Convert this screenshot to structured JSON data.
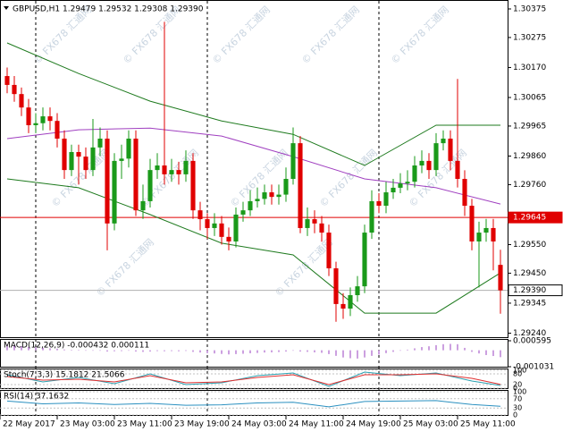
{
  "chart_data": {
    "type": "candlestick",
    "header": "GBPUSD,H1  1.29479 1.29532 1.29308 1.29390",
    "watermark": "© FX678 汇通网",
    "up_color": "#1a9a1a",
    "down_color": "#e00000",
    "xlim": [
      -1,
      70
    ],
    "ylim": [
      1.29229,
      1.304
    ],
    "yticks": [
      {
        "value": 1.30375,
        "label": "1.30375"
      },
      {
        "value": 1.30275,
        "label": "1.30275"
      },
      {
        "value": 1.3017,
        "label": "1.30170"
      },
      {
        "value": 1.30065,
        "label": "1.30065"
      },
      {
        "value": 1.29965,
        "label": "1.29965"
      },
      {
        "value": 1.2986,
        "label": "1.29860"
      },
      {
        "value": 1.2976,
        "label": "1.29760"
      },
      {
        "value": 1.2955,
        "label": "1.29550"
      },
      {
        "value": 1.2945,
        "label": "1.29450"
      },
      {
        "value": 1.29345,
        "label": "1.29345"
      },
      {
        "value": 1.2924,
        "label": "1.29240"
      }
    ],
    "xticks": [
      {
        "value": -1,
        "label": "22 May 2017"
      },
      {
        "value": 7,
        "label": "23 May 03:00"
      },
      {
        "value": 15,
        "label": "23 May 11:00"
      },
      {
        "value": 23,
        "label": "23 May 19:00"
      },
      {
        "value": 31,
        "label": "24 May 03:00"
      },
      {
        "value": 39,
        "label": "24 May 11:00"
      },
      {
        "value": 47,
        "label": "24 May 19:00"
      },
      {
        "value": 55,
        "label": "25 May 03:00"
      },
      {
        "value": 63,
        "label": "25 May 11:00"
      }
    ],
    "day_breaks": [
      4,
      28,
      52
    ],
    "markers": [
      {
        "value": 1.29645,
        "label": "1.29645",
        "color": "#e00000"
      },
      {
        "value": 1.2939,
        "label": "1.29390",
        "color": "#000000"
      }
    ],
    "open": [
      1.3014,
      1.30109,
      1.30077,
      1.3003,
      1.29968,
      1.29975,
      1.29999,
      1.29983,
      1.29921,
      1.29811,
      1.29874,
      1.29858,
      1.29811,
      1.2989,
      1.29921,
      1.29624,
      1.29843,
      1.29851,
      1.29921,
      1.2967,
      1.29702,
      1.29811,
      1.29827,
      1.29796,
      1.29811,
      1.29796,
      1.29843,
      1.2967,
      1.29639,
      1.29608,
      1.29624,
      1.29577,
      1.29561,
      1.29655,
      1.2967,
      1.29702,
      1.2971,
      1.29733,
      1.29717,
      1.29725,
      1.2978,
      1.29905,
      1.29608,
      1.29639,
      1.29624,
      1.29592,
      1.29467,
      1.29342,
      1.29326,
      1.29373,
      1.29404,
      1.29592,
      1.29702,
      1.29686,
      1.29733,
      1.29749,
      1.29764,
      1.2977,
      1.29827,
      1.29843,
      1.29811,
      1.29905,
      1.29921,
      1.29843,
      1.2978,
      1.29686,
      1.29561,
      1.29592,
      1.29608,
      1.29479
    ],
    "high": [
      1.3017,
      1.3014,
      1.301,
      1.3006,
      1.3001,
      1.3003,
      1.3003,
      1.3001,
      1.2995,
      1.299,
      1.299,
      1.2989,
      1.2999,
      1.2996,
      1.2995,
      1.2987,
      1.299,
      1.2995,
      1.2995,
      1.2976,
      1.2985,
      1.2987,
      1.3033,
      1.2985,
      1.2984,
      1.2988,
      1.2987,
      1.297,
      1.2966,
      1.2966,
      1.2965,
      1.2961,
      1.2968,
      1.297,
      1.2974,
      1.2975,
      1.2976,
      1.2976,
      1.2976,
      1.2982,
      1.2996,
      1.2993,
      1.2968,
      1.2967,
      1.2965,
      1.2962,
      1.2949,
      1.2938,
      1.294,
      1.2944,
      1.2962,
      1.2974,
      1.2973,
      1.2977,
      1.2978,
      1.298,
      1.2981,
      1.2986,
      1.2988,
      1.2987,
      1.2994,
      1.2995,
      1.2995,
      1.3013,
      1.2981,
      1.2971,
      1.2963,
      1.2964,
      1.2964,
      1.29532
    ],
    "low": [
      1.3008,
      1.3005,
      1.3,
      1.2994,
      1.2994,
      1.2995,
      1.2995,
      1.2989,
      1.2978,
      1.2979,
      1.2976,
      1.2978,
      1.2979,
      1.2986,
      1.2953,
      1.296,
      1.2978,
      1.2982,
      1.2965,
      1.2964,
      1.2968,
      1.2978,
      1.2976,
      1.2977,
      1.2976,
      1.2977,
      1.2964,
      1.296,
      1.2957,
      1.2958,
      1.2955,
      1.2953,
      1.2954,
      1.2963,
      1.2965,
      1.2968,
      1.2969,
      1.2969,
      1.2969,
      1.297,
      1.2976,
      1.2959,
      1.2958,
      1.2959,
      1.2956,
      1.2944,
      1.2928,
      1.2929,
      1.293,
      1.2935,
      1.2938,
      1.2957,
      1.2966,
      1.2966,
      1.2971,
      1.2973,
      1.2974,
      1.2975,
      1.298,
      1.2978,
      1.2979,
      1.2988,
      1.2981,
      1.2975,
      1.2965,
      1.2953,
      1.294,
      1.2956,
      1.2946,
      1.29308
    ],
    "close": [
      1.30109,
      1.30077,
      1.3003,
      1.29968,
      1.29975,
      1.29999,
      1.29983,
      1.29921,
      1.29811,
      1.29874,
      1.29858,
      1.29811,
      1.2989,
      1.29921,
      1.29624,
      1.29843,
      1.29851,
      1.29921,
      1.2967,
      1.29702,
      1.29811,
      1.29827,
      1.29796,
      1.29811,
      1.29796,
      1.29843,
      1.2967,
      1.29639,
      1.29608,
      1.29624,
      1.29577,
      1.29561,
      1.29655,
      1.2967,
      1.29702,
      1.2971,
      1.29733,
      1.29717,
      1.29725,
      1.2978,
      1.29905,
      1.29608,
      1.29639,
      1.29624,
      1.29592,
      1.29467,
      1.29342,
      1.29326,
      1.29373,
      1.29404,
      1.29592,
      1.29702,
      1.29686,
      1.29733,
      1.29749,
      1.29764,
      1.2977,
      1.29827,
      1.29843,
      1.29811,
      1.29905,
      1.29921,
      1.29843,
      1.2978,
      1.29686,
      1.29561,
      1.29592,
      1.29608,
      1.29561,
      1.2939
    ],
    "overlays": [
      {
        "color": "#1e7a1e",
        "x": [
          0,
          10,
          20,
          30,
          40,
          50,
          60,
          69
        ],
        "values": [
          1.30256,
          1.30149,
          1.30052,
          1.29983,
          1.29936,
          1.29827,
          1.29968,
          1.29968
        ]
      },
      {
        "color": "#1e7a1e",
        "x": [
          0,
          10,
          20,
          30,
          40,
          50,
          60,
          69
        ],
        "values": [
          1.2978,
          1.29749,
          1.29655,
          1.29555,
          1.29514,
          1.2931,
          1.2931,
          1.29451
        ]
      },
      {
        "color": "#a040c0",
        "x": [
          0,
          10,
          20,
          30,
          40,
          50,
          60,
          69
        ],
        "values": [
          1.29921,
          1.29952,
          1.29958,
          1.2993,
          1.29858,
          1.2978,
          1.29749,
          1.29692
        ]
      }
    ],
    "macd": {
      "label": "MACD(12,26,9) -0.000432 0.000111",
      "color": "#9a40c0",
      "ylim": [
        -0.001031,
        0.000595
      ],
      "yticks": [
        {
          "value": 0.000595,
          "label": "0.000595"
        },
        {
          "value": -0.001031,
          "label": "-0.001031"
        }
      ],
      "values": [
        0.00035,
        0.0003,
        0.00025,
        0.0002,
        0.00018,
        0.00015,
        0.00012,
        0.0001,
        5e-05,
        3e-05,
        2e-05,
        0,
        -2e-05,
        -3e-05,
        -8e-05,
        -6e-05,
        -5e-05,
        -2e-05,
        -8e-05,
        -0.0001,
        -8e-05,
        -5e-05,
        -6e-05,
        -5e-05,
        -6e-05,
        -4e-05,
        -0.0001,
        -0.00014,
        -0.00018,
        -0.0002,
        -0.00023,
        -0.00026,
        -0.00024,
        -0.00022,
        -0.00019,
        -0.00017,
        -0.00014,
        -0.00013,
        -0.00011,
        -8e-05,
        -2e-05,
        -8e-05,
        -0.0001,
        -0.00013,
        -0.00016,
        -0.00024,
        -0.00035,
        -0.00045,
        -0.0005,
        -0.00052,
        -0.00045,
        -0.00035,
        -0.00027,
        -0.00018,
        -0.0001,
        -3e-05,
        4e-05,
        0.00012,
        0.0002,
        0.00025,
        0.00032,
        0.00038,
        0.0004,
        0.00038,
        0.00015,
        -0.0001,
        -0.0002,
        -0.0003,
        -0.00036,
        -0.000432
      ]
    },
    "stoch": {
      "label": "Stoch(7,3,3) 15.1812 21.5066",
      "ylim": [
        0,
        100
      ],
      "yticks": [
        0,
        20,
        80,
        100
      ],
      "x": [
        0,
        5,
        10,
        15,
        20,
        25,
        30,
        35,
        40,
        45,
        50,
        55,
        60,
        65,
        69
      ],
      "series": [
        {
          "color": "#2aa0b0",
          "values": [
            75,
            35,
            60,
            25,
            80,
            20,
            30,
            70,
            85,
            10,
            90,
            70,
            85,
            40,
            15.1812
          ]
        },
        {
          "color": "#e03030",
          "values": [
            65,
            45,
            50,
            35,
            70,
            30,
            35,
            60,
            75,
            20,
            75,
            75,
            80,
            55,
            21.5066
          ]
        }
      ]
    },
    "rsi": {
      "label": "RSI(14) 37.1632",
      "ylim": [
        0,
        100
      ],
      "yticks": [
        0,
        30,
        70,
        100
      ],
      "color": "#2a90c0",
      "x": [
        0,
        5,
        10,
        15,
        20,
        25,
        30,
        35,
        40,
        45,
        50,
        55,
        60,
        65,
        69
      ],
      "values": [
        60,
        48,
        52,
        45,
        50,
        42,
        44,
        52,
        55,
        35,
        58,
        60,
        62,
        45,
        37.1632
      ]
    }
  }
}
